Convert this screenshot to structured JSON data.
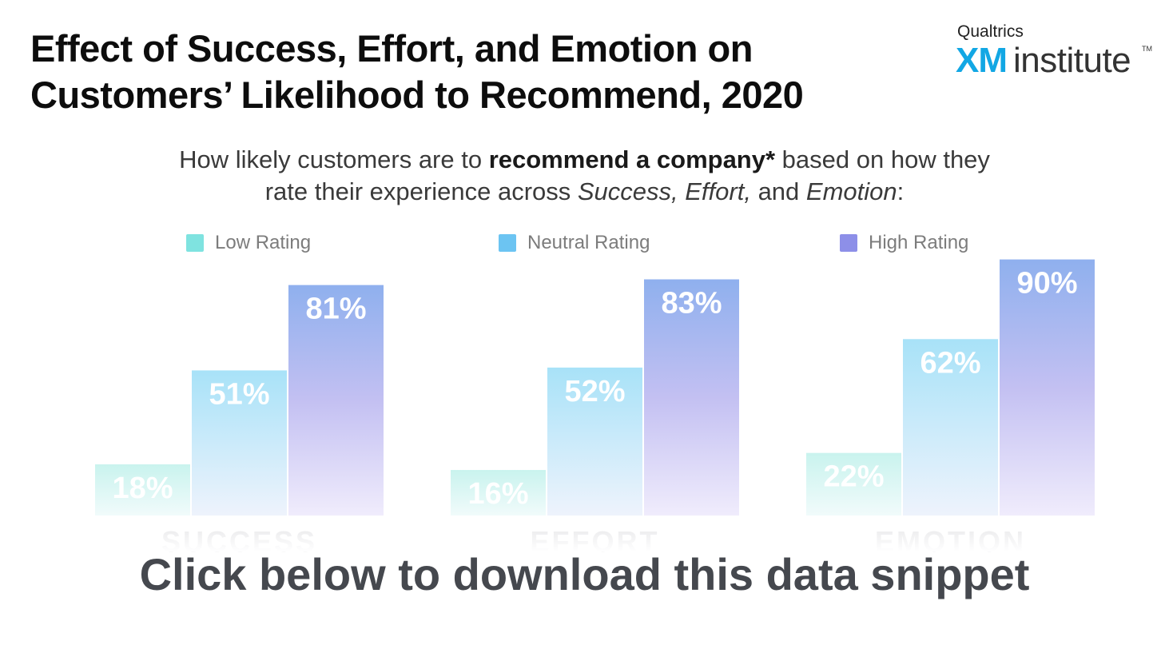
{
  "header": {
    "title_line1": "Effect of Success, Effort, and Emotion on",
    "title_line2": "Customers’ Likelihood to Recommend, 2020"
  },
  "logo": {
    "brand": "Qualtrics",
    "xm": "XM",
    "institute": "institute",
    "tm": "TM"
  },
  "subtitle": {
    "line1_pre": "How likely customers are to ",
    "line1_bold": "recommend a company*",
    "line1_post": " based on how they",
    "line2_pre": "rate their experience across ",
    "line2_italic1": "Success, Effort,",
    "line2_mid": " and ",
    "line2_italic2": "Emotion",
    "line2_post": ":"
  },
  "cta": {
    "label": "Click below to download this data snippet"
  },
  "colors": {
    "low": "#7fe3e0",
    "neutral": "#6cc4f2",
    "high": "#8d8fe8"
  },
  "chart_data": {
    "type": "bar",
    "title": "Effect of Success, Effort, and Emotion on Customers’ Likelihood to Recommend, 2020",
    "categories": [
      "SUCCESS",
      "EFFORT",
      "EMOTION"
    ],
    "series": [
      {
        "name": "Low Rating",
        "values": [
          18,
          16,
          22
        ],
        "labels": [
          "18%",
          "16%",
          "22%"
        ]
      },
      {
        "name": "Neutral Rating",
        "values": [
          51,
          52,
          62
        ],
        "labels": [
          "51%",
          "52%",
          "62%"
        ]
      },
      {
        "name": "High Rating",
        "values": [
          81,
          83,
          90
        ],
        "labels": [
          "81%",
          "83%",
          "90%"
        ]
      }
    ],
    "ylim": [
      0,
      100
    ],
    "xlabel": "",
    "ylabel": "",
    "legend": "top"
  }
}
